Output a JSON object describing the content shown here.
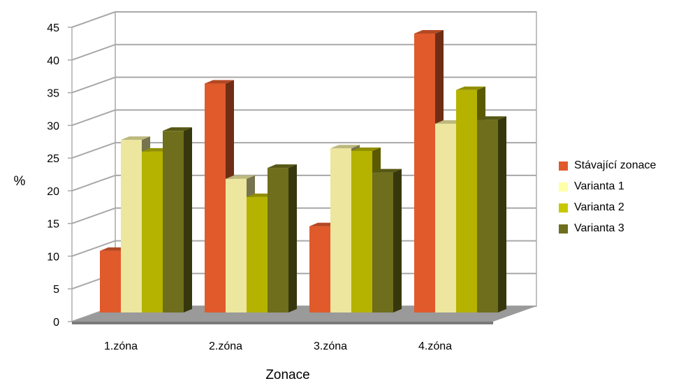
{
  "chart_data": {
    "type": "bar",
    "title": "",
    "xlabel": "Zonace",
    "ylabel": "%",
    "ylim": [
      0,
      45
    ],
    "yticks": [
      "0",
      "5",
      "10",
      "15",
      "20",
      "25",
      "30",
      "35",
      "40",
      "45"
    ],
    "categories": [
      "1.zóna",
      "2.zóna",
      "3.zóna",
      "4.zóna"
    ],
    "series": [
      {
        "name": "Stávající zonace",
        "color": "#e05a2c",
        "values": [
          9.5,
          35.3,
          13.3,
          43
        ]
      },
      {
        "name": "Varianta 1",
        "color": "#ece69e",
        "values": [
          26.6,
          20.6,
          25.3,
          29.1
        ]
      },
      {
        "name": "Varianta 2",
        "color": "#b5b300",
        "values": [
          24.8,
          17.8,
          24.9,
          34.3
        ]
      },
      {
        "name": "Varianta 3",
        "color": "#6e6e1c",
        "values": [
          28,
          22.3,
          21.6,
          29.7
        ]
      }
    ],
    "grid": true,
    "legend_position": "right",
    "style": "3d-clustered-column"
  }
}
